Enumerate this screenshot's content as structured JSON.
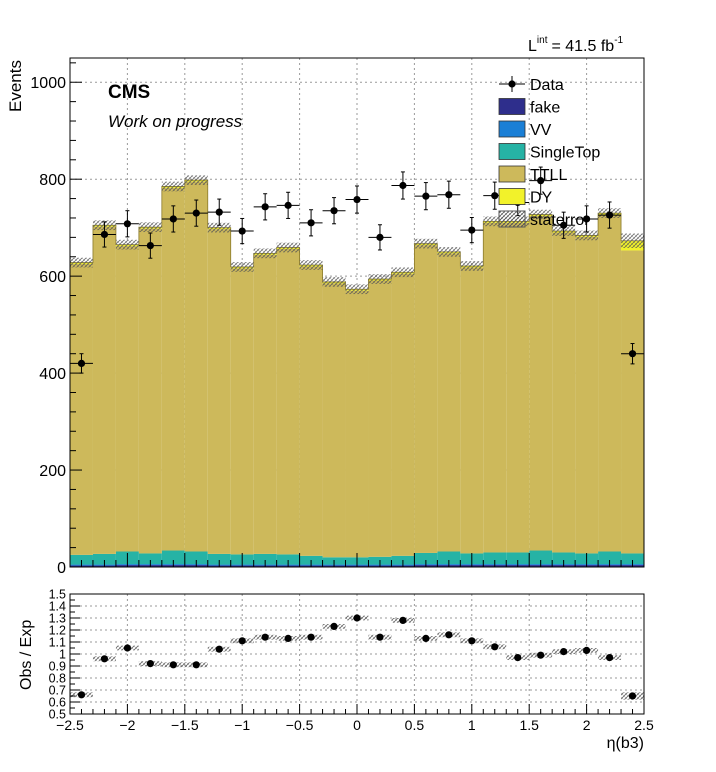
{
  "chart_data": [
    {
      "type": "bar",
      "stacked": true,
      "title": "",
      "header": {
        "lumi_prefix": "L",
        "lumi_sup": "int",
        "lumi_value": "= 41.5 fb",
        "lumi_unit_sup": "-1"
      },
      "cms_label": "CMS",
      "cms_sublabel": "Work on progress",
      "ylabel": "Events",
      "ylim": [
        0,
        1050
      ],
      "yticks": [
        0,
        200,
        400,
        600,
        800,
        1000
      ],
      "xlim": [
        -2.5,
        2.5
      ],
      "bin_edges": [
        -2.5,
        -2.3,
        -2.1,
        -1.9,
        -1.7,
        -1.5,
        -1.3,
        -1.1,
        -0.9,
        -0.7,
        -0.5,
        -0.3,
        -0.1,
        0.1,
        0.3,
        0.5,
        0.7,
        0.9,
        1.1,
        1.3,
        1.5,
        1.7,
        1.9,
        2.1,
        2.3,
        2.5
      ],
      "grid": true,
      "legend": {
        "placement": "top-right",
        "entries": [
          {
            "name": "Data",
            "kind": "marker"
          },
          {
            "name": "fake",
            "color": "#2e2e8c"
          },
          {
            "name": "VV",
            "color": "#1a7fd6"
          },
          {
            "name": "SingleTop",
            "color": "#26b3a5"
          },
          {
            "name": "TTLL",
            "color": "#cdb95b"
          },
          {
            "name": "DY",
            "color": "#f2f22a"
          },
          {
            "name": "staterror",
            "kind": "hatch"
          }
        ]
      },
      "series": [
        {
          "name": "fake",
          "color": "#2e2e8c",
          "values": [
            3,
            3,
            4,
            4,
            4,
            4,
            3,
            3,
            3,
            3,
            3,
            3,
            3,
            3,
            3,
            4,
            4,
            4,
            4,
            4,
            4,
            4,
            4,
            4,
            4
          ]
        },
        {
          "name": "VV",
          "color": "#1a7fd6",
          "values": [
            2,
            2,
            2,
            2,
            2,
            2,
            2,
            2,
            2,
            2,
            2,
            2,
            2,
            2,
            2,
            2,
            2,
            2,
            2,
            2,
            2,
            2,
            2,
            2,
            2
          ]
        },
        {
          "name": "SingleTop",
          "color": "#26b3a5",
          "values": [
            20,
            22,
            26,
            22,
            28,
            26,
            22,
            21,
            22,
            21,
            18,
            15,
            15,
            16,
            18,
            23,
            26,
            22,
            24,
            24,
            28,
            24,
            22,
            26,
            22
          ]
        },
        {
          "name": "TTLL",
          "color": "#cdb95b",
          "values": [
            600,
            675,
            630,
            670,
            748,
            763,
            670,
            590,
            617,
            630,
            597,
            565,
            550,
            570,
            582,
            635,
            615,
            590,
            680,
            680,
            690,
            660,
            653,
            695,
            625
          ]
        },
        {
          "name": "DY",
          "color": "#f2f22a",
          "values": [
            3,
            3,
            3,
            3,
            3,
            3,
            3,
            3,
            3,
            3,
            3,
            3,
            3,
            3,
            3,
            3,
            3,
            3,
            3,
            3,
            3,
            3,
            3,
            3,
            20
          ]
        }
      ],
      "staterror": [
        10,
        10,
        10,
        10,
        10,
        10,
        10,
        10,
        10,
        10,
        10,
        10,
        10,
        10,
        10,
        10,
        10,
        10,
        10,
        10,
        10,
        10,
        10,
        10,
        15
      ],
      "data": {
        "name": "Data",
        "x": [
          -2.4,
          -2.2,
          -2.0,
          -1.8,
          -1.6,
          -1.4,
          -1.2,
          -1.0,
          -0.8,
          -0.6,
          -0.4,
          -0.2,
          0.0,
          0.2,
          0.4,
          0.6,
          0.8,
          1.0,
          1.2,
          1.4,
          1.6,
          1.8,
          2.0,
          2.2,
          2.4
        ],
        "y": [
          420,
          686,
          708,
          663,
          718,
          730,
          732,
          693,
          743,
          746,
          710,
          735,
          758,
          680,
          787,
          765,
          768,
          695,
          766,
          752,
          797,
          705,
          718,
          726,
          440
        ],
        "err": [
          20,
          26,
          27,
          26,
          27,
          27,
          27,
          26,
          27,
          27,
          27,
          27,
          28,
          26,
          28,
          28,
          28,
          26,
          28,
          27,
          28,
          27,
          27,
          27,
          21
        ]
      }
    },
    {
      "type": "scatter",
      "ylabel": "Obs / Exp",
      "xlabel": "η(b3)",
      "ylim": [
        0.5,
        1.5
      ],
      "yticks": [
        0.5,
        0.6,
        0.7,
        0.8,
        0.9,
        1,
        1.1,
        1.2,
        1.3,
        1.4,
        1.5
      ],
      "ytick_labels": [
        "0.5",
        "0.6",
        "0.7",
        "0.8",
        "0.9",
        "1",
        "1.1",
        "1.2",
        "1.3",
        "1.4",
        "1.5"
      ],
      "xlim": [
        -2.5,
        2.5
      ],
      "xticks": [
        -2.5,
        -2,
        -1.5,
        -1,
        -0.5,
        0,
        0.5,
        1,
        1.5,
        2,
        2.5
      ],
      "xtick_labels": [
        "−2.5",
        "−2",
        "−1.5",
        "−1",
        "−0.5",
        "0",
        "0.5",
        "1",
        "1.5",
        "2",
        "2.5"
      ],
      "grid": true,
      "x": [
        -2.4,
        -2.2,
        -2.0,
        -1.8,
        -1.6,
        -1.4,
        -1.2,
        -1.0,
        -0.8,
        -0.6,
        -0.4,
        -0.2,
        0.0,
        0.2,
        0.4,
        0.6,
        0.8,
        1.0,
        1.2,
        1.4,
        1.6,
        1.8,
        2.0,
        2.2,
        2.4
      ],
      "y": [
        0.66,
        0.96,
        1.05,
        0.92,
        0.91,
        0.91,
        1.04,
        1.11,
        1.14,
        1.13,
        1.14,
        1.23,
        1.3,
        1.14,
        1.28,
        1.13,
        1.16,
        1.11,
        1.06,
        0.97,
        0.99,
        1.02,
        1.03,
        0.97,
        0.65
      ],
      "band": [
        0.02,
        0.02,
        0.02,
        0.02,
        0.02,
        0.02,
        0.02,
        0.02,
        0.02,
        0.02,
        0.02,
        0.02,
        0.02,
        0.02,
        0.02,
        0.02,
        0.02,
        0.02,
        0.02,
        0.02,
        0.02,
        0.02,
        0.02,
        0.02,
        0.03
      ]
    }
  ]
}
